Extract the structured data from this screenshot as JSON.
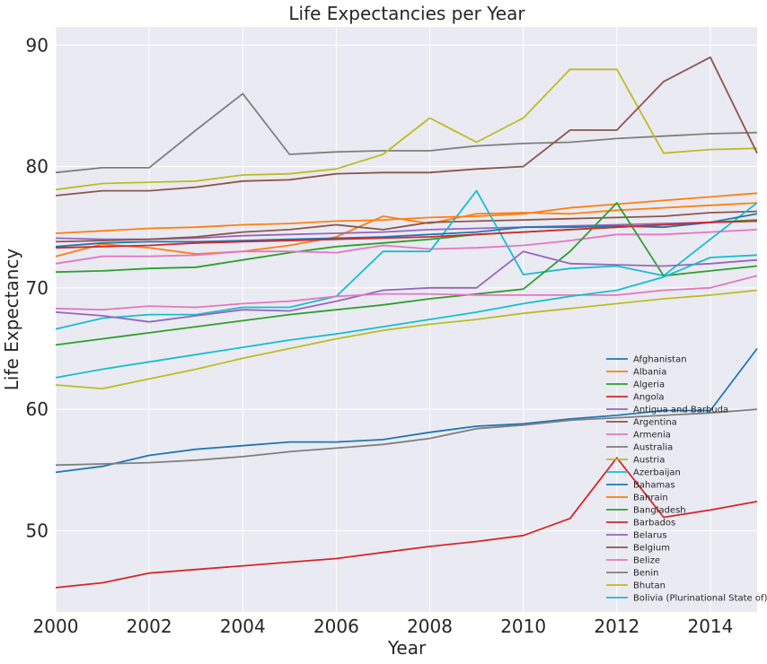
{
  "chart_data": {
    "type": "line",
    "title": "Life Expectancies per Year",
    "xlabel": "Year",
    "ylabel": "Life Expectancy",
    "xlim": [
      2000,
      2015
    ],
    "ylim": [
      43.3,
      91.5
    ],
    "xticks": [
      2000,
      2002,
      2004,
      2006,
      2008,
      2010,
      2012,
      2014
    ],
    "yticks": [
      50,
      60,
      70,
      80,
      90
    ],
    "grid": true,
    "legend_position": "lower-right",
    "x": [
      2000,
      2001,
      2002,
      2003,
      2004,
      2005,
      2006,
      2007,
      2008,
      2009,
      2010,
      2011,
      2012,
      2013,
      2014,
      2015
    ],
    "series": [
      {
        "name": "Afghanistan",
        "color": "#1f77b4",
        "values": [
          54.8,
          55.3,
          56.2,
          56.7,
          57.0,
          57.3,
          57.3,
          57.5,
          58.1,
          58.6,
          58.8,
          59.2,
          59.5,
          59.9,
          59.9,
          65.0
        ]
      },
      {
        "name": "Albania",
        "color": "#ff7f0e",
        "values": [
          72.6,
          73.6,
          73.3,
          72.8,
          73.0,
          73.5,
          74.2,
          75.9,
          75.3,
          76.1,
          76.2,
          76.1,
          76.4,
          76.6,
          76.8,
          77.0
        ]
      },
      {
        "name": "Algeria",
        "color": "#2ca02c",
        "values": [
          71.3,
          71.4,
          71.6,
          71.7,
          72.3,
          72.9,
          73.4,
          73.7,
          74.0,
          74.4,
          74.6,
          74.8,
          75.0,
          75.2,
          75.4,
          75.6
        ]
      },
      {
        "name": "Angola",
        "color": "#d62728",
        "values": [
          45.3,
          45.7,
          46.5,
          46.8,
          47.1,
          47.4,
          47.7,
          48.2,
          48.7,
          49.1,
          49.6,
          51.0,
          56.0,
          51.1,
          51.7,
          52.4
        ]
      },
      {
        "name": "Antigua and Barbuda",
        "color": "#9467bd",
        "values": [
          74.1,
          74.0,
          74.0,
          74.1,
          74.3,
          74.4,
          74.5,
          74.6,
          74.8,
          74.9,
          75.0,
          75.1,
          75.2,
          75.3,
          75.4,
          75.5
        ]
      },
      {
        "name": "Argentina",
        "color": "#8c564b",
        "values": [
          73.8,
          73.9,
          74.0,
          74.2,
          74.6,
          74.8,
          75.2,
          74.8,
          75.4,
          75.5,
          75.6,
          75.7,
          75.8,
          75.9,
          76.2,
          76.3
        ]
      },
      {
        "name": "Armenia",
        "color": "#e377c2",
        "values": [
          72.0,
          72.6,
          72.6,
          72.7,
          73.0,
          73.0,
          72.9,
          73.5,
          73.2,
          73.3,
          73.5,
          73.9,
          74.4,
          74.4,
          74.6,
          74.8
        ]
      },
      {
        "name": "Australia",
        "color": "#7f7f7f",
        "values": [
          79.5,
          79.9,
          79.9,
          83.0,
          86.0,
          81.0,
          81.2,
          81.3,
          81.3,
          81.7,
          81.9,
          82.0,
          82.3,
          82.5,
          82.7,
          82.8
        ]
      },
      {
        "name": "Austria",
        "color": "#bcbd22",
        "values": [
          78.1,
          78.6,
          78.7,
          78.8,
          79.3,
          79.4,
          79.8,
          81.0,
          84.0,
          82.0,
          84.0,
          88.0,
          88.0,
          81.1,
          81.4,
          81.5
        ]
      },
      {
        "name": "Azerbaijan",
        "color": "#17becf",
        "values": [
          66.6,
          67.5,
          67.8,
          67.8,
          68.4,
          68.4,
          69.3,
          73.0,
          73.0,
          78.0,
          71.1,
          71.6,
          71.8,
          71.0,
          74.0,
          77.0
        ]
      },
      {
        "name": "Bahamas",
        "color": "#1f77b4",
        "values": [
          73.4,
          73.7,
          73.8,
          73.8,
          73.9,
          74.0,
          74.1,
          74.2,
          74.4,
          74.6,
          75.0,
          75.0,
          75.1,
          75.0,
          75.4,
          76.1
        ]
      },
      {
        "name": "Bahrain",
        "color": "#ff7f0e",
        "values": [
          74.5,
          74.7,
          74.9,
          75.0,
          75.2,
          75.3,
          75.5,
          75.6,
          75.8,
          75.9,
          76.1,
          76.6,
          76.9,
          77.2,
          77.5,
          77.8
        ]
      },
      {
        "name": "Bangladesh",
        "color": "#2ca02c",
        "values": [
          65.3,
          65.8,
          66.3,
          66.8,
          67.3,
          67.8,
          68.2,
          68.6,
          69.1,
          69.5,
          69.9,
          73.0,
          77.0,
          71.0,
          71.4,
          71.8
        ]
      },
      {
        "name": "Barbados",
        "color": "#d62728",
        "values": [
          73.3,
          73.4,
          73.5,
          73.7,
          73.8,
          73.9,
          74.0,
          74.1,
          74.2,
          74.4,
          74.6,
          74.8,
          75.0,
          75.2,
          75.4,
          75.5
        ]
      },
      {
        "name": "Belarus",
        "color": "#9467bd",
        "values": [
          68.0,
          67.7,
          67.2,
          67.7,
          68.2,
          68.1,
          68.9,
          69.8,
          70.0,
          70.0,
          73.0,
          72.0,
          71.9,
          71.8,
          72.0,
          72.3
        ]
      },
      {
        "name": "Belgium",
        "color": "#8c564b",
        "values": [
          77.6,
          78.0,
          78.0,
          78.3,
          78.8,
          78.9,
          79.4,
          79.5,
          79.5,
          79.8,
          80.0,
          83.0,
          83.0,
          87.0,
          89.0,
          81.1
        ]
      },
      {
        "name": "Belize",
        "color": "#e377c2",
        "values": [
          68.3,
          68.2,
          68.5,
          68.4,
          68.7,
          68.9,
          69.3,
          69.5,
          69.5,
          69.4,
          69.4,
          69.4,
          69.4,
          69.8,
          70.0,
          71.0
        ]
      },
      {
        "name": "Benin",
        "color": "#7f7f7f",
        "values": [
          55.4,
          55.5,
          55.6,
          55.8,
          56.1,
          56.5,
          56.8,
          57.1,
          57.6,
          58.4,
          58.7,
          59.1,
          59.3,
          59.5,
          59.7,
          60.0
        ]
      },
      {
        "name": "Bhutan",
        "color": "#bcbd22",
        "values": [
          62.0,
          61.7,
          62.5,
          63.3,
          64.2,
          65.0,
          65.8,
          66.5,
          67.0,
          67.4,
          67.9,
          68.3,
          68.7,
          69.1,
          69.4,
          69.8
        ]
      },
      {
        "name": "Bolivia (Plurinational State of)",
        "color": "#17becf",
        "values": [
          62.6,
          63.3,
          63.9,
          64.5,
          65.1,
          65.7,
          66.2,
          66.8,
          67.4,
          68.0,
          68.7,
          69.3,
          69.8,
          70.9,
          72.5,
          72.7
        ]
      }
    ]
  }
}
